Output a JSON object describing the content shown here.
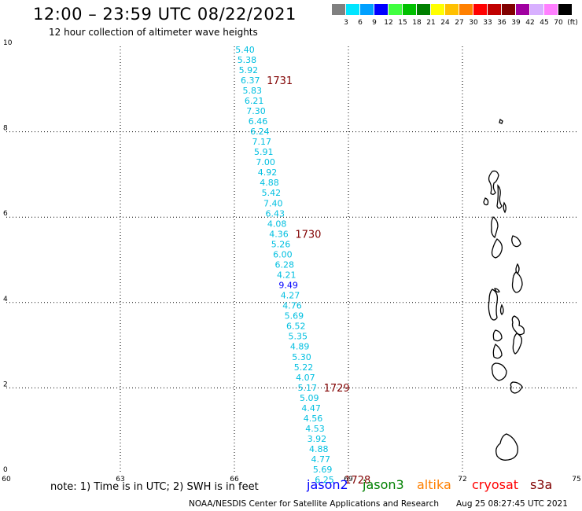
{
  "header": {
    "title": "12:00 – 23:59 UTC 08/22/2021",
    "subtitle": "12 hour collection of altimeter wave heights"
  },
  "legend": {
    "labels": [
      "3",
      "6",
      "9",
      "12",
      "15",
      "18",
      "21",
      "24",
      "27",
      "30",
      "33",
      "36",
      "39",
      "42",
      "45",
      "70",
      "(ft)"
    ],
    "colors": [
      "#808080",
      "#00e5ff",
      "#00a0ff",
      "#0000ff",
      "#40ff40",
      "#00c000",
      "#008000",
      "#ffff00",
      "#ffc000",
      "#ff8000",
      "#ff0000",
      "#c00000",
      "#800000",
      "#a000a0",
      "#d8b0ff",
      "#ff80ff",
      "#000000"
    ]
  },
  "map": {
    "lon_ticks": [
      "60",
      "63",
      "66",
      "69",
      "72",
      "75"
    ],
    "lat_ticks": [
      "0",
      "2",
      "4",
      "6",
      "8",
      "10"
    ],
    "lon_range": [
      60,
      75
    ],
    "lat_range": [
      0,
      10
    ],
    "grid": "dotted",
    "track_color": "#00bfe0",
    "track_points": [
      {
        "lon": 66.28,
        "lat": 9.93,
        "swh": "5.40"
      },
      {
        "lon": 66.33,
        "lat": 9.69,
        "swh": "5.38"
      },
      {
        "lon": 66.37,
        "lat": 9.45,
        "swh": "5.92"
      },
      {
        "lon": 66.42,
        "lat": 9.21,
        "swh": "6.37"
      },
      {
        "lon": 66.47,
        "lat": 8.97,
        "swh": "5.83"
      },
      {
        "lon": 66.52,
        "lat": 8.73,
        "swh": "6.21"
      },
      {
        "lon": 66.57,
        "lat": 8.49,
        "swh": "7.30"
      },
      {
        "lon": 66.62,
        "lat": 8.25,
        "swh": "6.46"
      },
      {
        "lon": 66.67,
        "lat": 8.01,
        "swh": "6.24"
      },
      {
        "lon": 66.72,
        "lat": 7.77,
        "swh": "7.17"
      },
      {
        "lon": 66.77,
        "lat": 7.53,
        "swh": "5.91"
      },
      {
        "lon": 66.82,
        "lat": 7.29,
        "swh": "7.00"
      },
      {
        "lon": 66.87,
        "lat": 7.05,
        "swh": "4.92"
      },
      {
        "lon": 66.92,
        "lat": 6.81,
        "swh": "4.88"
      },
      {
        "lon": 66.97,
        "lat": 6.57,
        "swh": "5.42"
      },
      {
        "lon": 67.02,
        "lat": 6.33,
        "swh": "7.40"
      },
      {
        "lon": 67.07,
        "lat": 6.09,
        "swh": "6.43"
      },
      {
        "lon": 67.12,
        "lat": 5.85,
        "swh": "4.08"
      },
      {
        "lon": 67.17,
        "lat": 5.61,
        "swh": "4.36"
      },
      {
        "lon": 67.22,
        "lat": 5.37,
        "swh": "5.26"
      },
      {
        "lon": 67.27,
        "lat": 5.13,
        "swh": "6.00"
      },
      {
        "lon": 67.32,
        "lat": 4.89,
        "swh": "6.28"
      },
      {
        "lon": 67.37,
        "lat": 4.65,
        "swh": "4.21"
      },
      {
        "lon": 67.42,
        "lat": 4.41,
        "swh": "9.49"
      },
      {
        "lon": 67.47,
        "lat": 4.17,
        "swh": "4.27"
      },
      {
        "lon": 67.52,
        "lat": 3.93,
        "swh": "4.76"
      },
      {
        "lon": 67.57,
        "lat": 3.69,
        "swh": "5.69"
      },
      {
        "lon": 67.62,
        "lat": 3.45,
        "swh": "6.52"
      },
      {
        "lon": 67.67,
        "lat": 3.21,
        "swh": "5.35"
      },
      {
        "lon": 67.72,
        "lat": 2.97,
        "swh": "4.89"
      },
      {
        "lon": 67.77,
        "lat": 2.73,
        "swh": "5.30"
      },
      {
        "lon": 67.82,
        "lat": 2.49,
        "swh": "5.22"
      },
      {
        "lon": 67.87,
        "lat": 2.25,
        "swh": "4.07"
      },
      {
        "lon": 67.92,
        "lat": 2.01,
        "swh": "5.17"
      },
      {
        "lon": 67.97,
        "lat": 1.77,
        "swh": "5.09"
      },
      {
        "lon": 68.02,
        "lat": 1.53,
        "swh": "4.47"
      },
      {
        "lon": 68.07,
        "lat": 1.29,
        "swh": "4.56"
      },
      {
        "lon": 68.12,
        "lat": 1.05,
        "swh": "4.53"
      },
      {
        "lon": 68.17,
        "lat": 0.81,
        "swh": "3.92"
      },
      {
        "lon": 68.22,
        "lat": 0.57,
        "swh": "4.88"
      },
      {
        "lon": 68.27,
        "lat": 0.33,
        "swh": "4.77"
      },
      {
        "lon": 68.32,
        "lat": 0.09,
        "swh": "5.69"
      },
      {
        "lon": 68.37,
        "lat": -0.15,
        "swh": "6.25"
      }
    ],
    "time_labels": [
      {
        "lon": 66.85,
        "lat": 9.21,
        "text": "1731",
        "color": "#800000"
      },
      {
        "lon": 67.6,
        "lat": 5.61,
        "text": "1730",
        "color": "#800000"
      },
      {
        "lon": 68.35,
        "lat": 2.01,
        "text": "1729",
        "color": "#800000"
      },
      {
        "lon": 68.9,
        "lat": -0.15,
        "text": "1728",
        "color": "#800000"
      }
    ]
  },
  "footer": {
    "note": "note:  1) Time is in UTC;  2) SWH is in feet",
    "satellites": [
      {
        "name": "jason2",
        "color": "#0000ff"
      },
      {
        "name": "jason3",
        "color": "#008000"
      },
      {
        "name": "altika",
        "color": "#ff8000"
      },
      {
        "name": "cryosat",
        "color": "#ff0000"
      },
      {
        "name": "s3a",
        "color": "#800000"
      }
    ],
    "credit": "NOAA/NESDIS Center for Satellite Applications and Research",
    "timestamp": "Aug 25 08:27:45 UTC 2021"
  }
}
